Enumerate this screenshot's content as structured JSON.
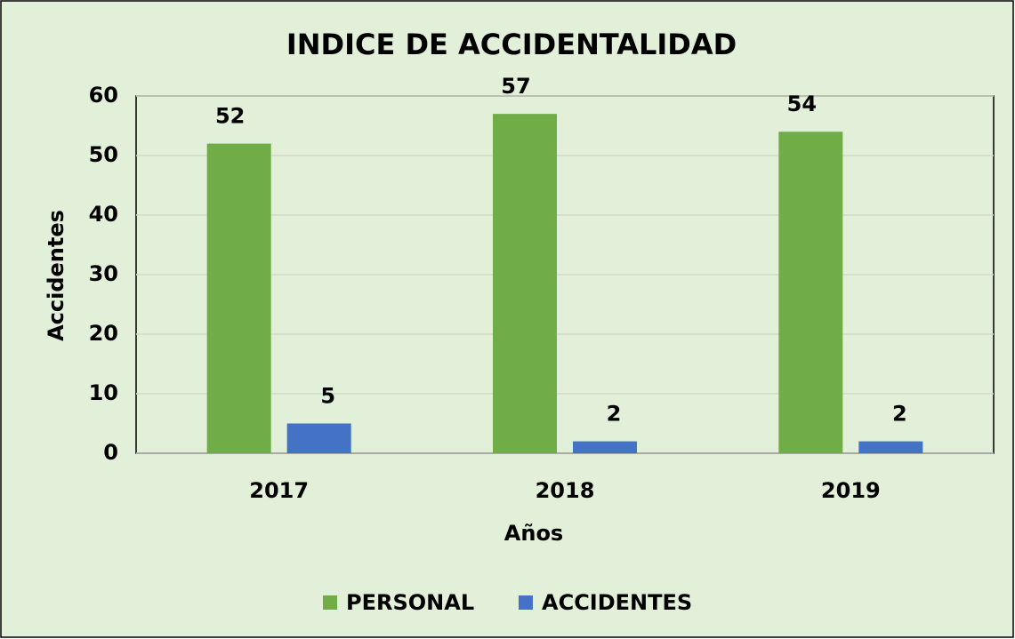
{
  "chart_data": {
    "type": "bar",
    "title": "INDICE DE ACCIDENTALIDAD",
    "categories": [
      "2017",
      "2018",
      "2019"
    ],
    "series": [
      {
        "name": "PERSONAL",
        "color": "#70ad47",
        "values": [
          52,
          57,
          54
        ]
      },
      {
        "name": "ACCIDENTES",
        "color": "#4472c4",
        "values": [
          5,
          2,
          2
        ]
      }
    ],
    "ylim": [
      0,
      60
    ],
    "yticks": [
      0,
      10,
      20,
      30,
      40,
      50,
      60
    ],
    "grid": true,
    "xlabel": "Años",
    "ylabel": "Accidentes",
    "legend": "bottom"
  }
}
